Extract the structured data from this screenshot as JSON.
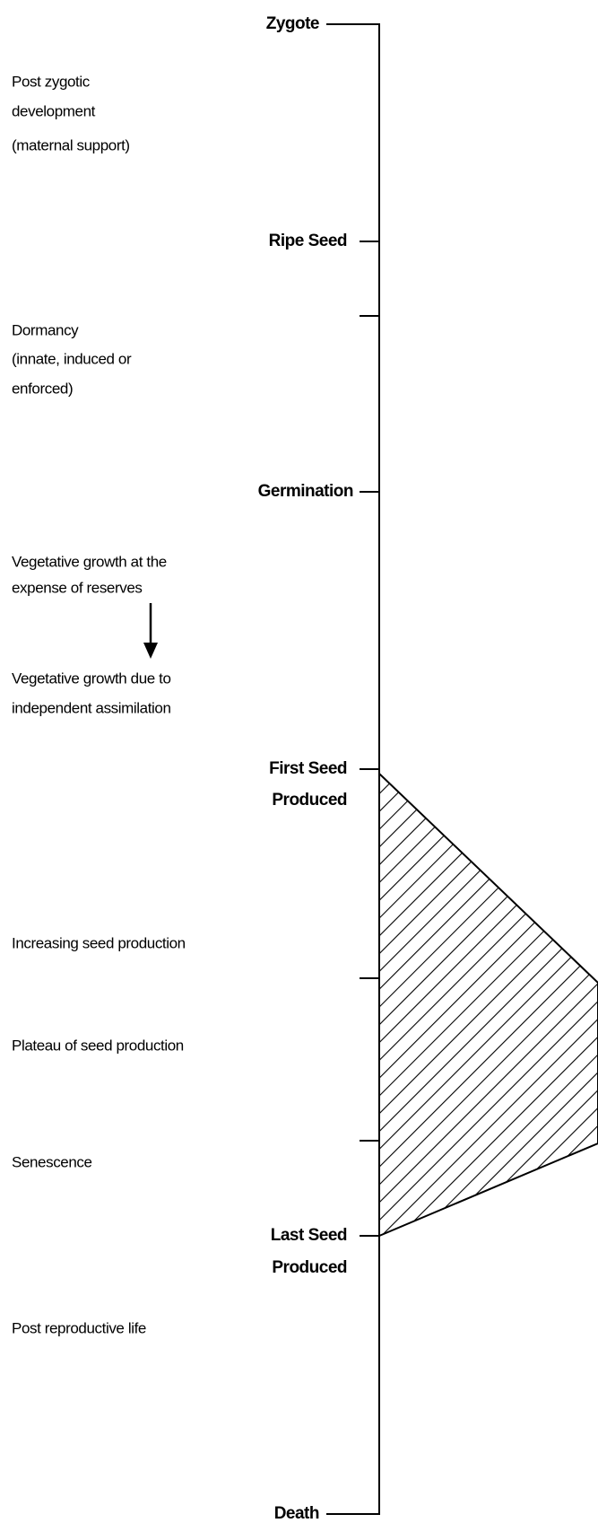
{
  "stages": {
    "zygote": "Zygote",
    "ripe_seed": "Ripe Seed",
    "germination": "Germination",
    "first_seed": [
      "First Seed",
      "Produced"
    ],
    "last_seed": [
      "Last Seed",
      "Produced"
    ],
    "death": "Death"
  },
  "descriptions": {
    "post_zygotic": [
      "Post zygotic",
      "development",
      "(maternal support)"
    ],
    "dormancy": [
      "Dormancy",
      "(innate, induced or",
      "enforced)"
    ],
    "vegetative_reserves": [
      "Vegetative growth at the",
      "expense of reserves"
    ],
    "vegetative_independent": [
      "Vegetative growth due to",
      "independent assimilation"
    ],
    "increasing": "Increasing seed production",
    "plateau": "Plateau of seed production",
    "senescence": "Senescence",
    "post_reproductive": "Post reproductive life"
  }
}
